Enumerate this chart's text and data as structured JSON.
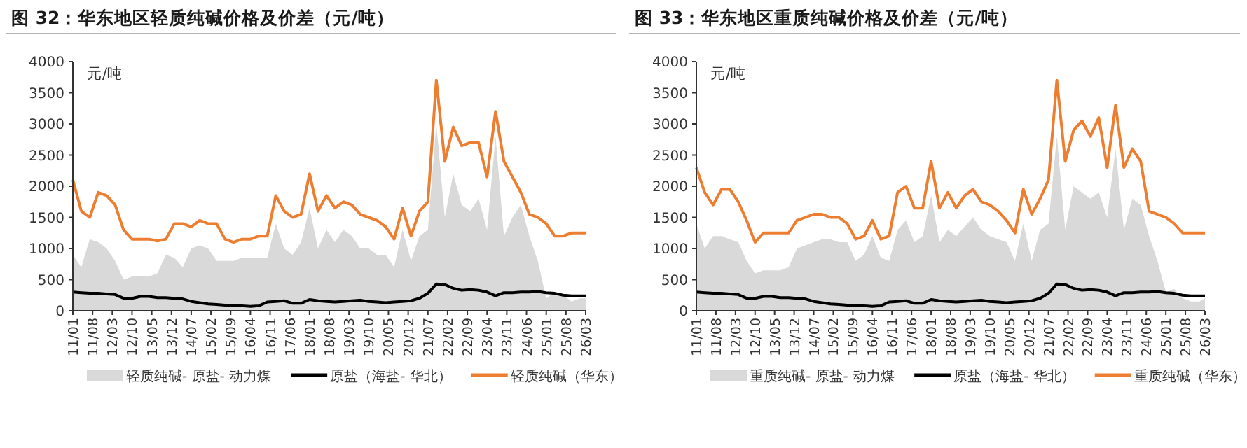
{
  "chart_data": [
    {
      "type": "line",
      "title": "图 32：华东地区轻质纯碱价格及价差（元/吨）",
      "ylabel": "元/吨",
      "legend": "bottom",
      "grid": false,
      "x": [
        "2011-01",
        "2011-04",
        "2011-07",
        "2011-10",
        "2012-01",
        "2012-04",
        "2012-07",
        "2012-10",
        "2013-01",
        "2013-04",
        "2013-07",
        "2013-10",
        "2014-01",
        "2014-04",
        "2014-07",
        "2014-10",
        "2015-01",
        "2015-04",
        "2015-07",
        "2015-10",
        "2016-01",
        "2016-04",
        "2016-07",
        "2016-10",
        "2017-01",
        "2017-04",
        "2017-07",
        "2017-10",
        "2018-01",
        "2018-04",
        "2018-07",
        "2018-10",
        "2019-01",
        "2019-04",
        "2019-07",
        "2019-10",
        "2020-01",
        "2020-04",
        "2020-07",
        "2020-10",
        "2021-01",
        "2021-04",
        "2021-07",
        "2021-10",
        "2022-01",
        "2022-04",
        "2022-07",
        "2022-10",
        "2023-01",
        "2023-04",
        "2023-07",
        "2023-10",
        "2024-01",
        "2024-04",
        "2024-07",
        "2024-10",
        "2025-01",
        "2025-04",
        "2025-07",
        "2025-10",
        "2026-01",
        "2026-03"
      ],
      "xlim": [
        "2011-01",
        "2026-03"
      ],
      "xticks": [
        {
          "value": "2011-01",
          "label": "11/01"
        },
        {
          "value": "2011-08",
          "label": "11/08"
        },
        {
          "value": "2012-03",
          "label": "12/03"
        },
        {
          "value": "2012-10",
          "label": "12/10"
        },
        {
          "value": "2013-05",
          "label": "13/05"
        },
        {
          "value": "2013-12",
          "label": "13/12"
        },
        {
          "value": "2014-07",
          "label": "14/07"
        },
        {
          "value": "2015-02",
          "label": "15/02"
        },
        {
          "value": "2015-09",
          "label": "15/09"
        },
        {
          "value": "2016-04",
          "label": "16/04"
        },
        {
          "value": "2016-11",
          "label": "16/11"
        },
        {
          "value": "2017-06",
          "label": "17/06"
        },
        {
          "value": "2018-01",
          "label": "18/01"
        },
        {
          "value": "2018-08",
          "label": "18/08"
        },
        {
          "value": "2019-03",
          "label": "19/03"
        },
        {
          "value": "2019-10",
          "label": "19/10"
        },
        {
          "value": "2020-05",
          "label": "20/05"
        },
        {
          "value": "2020-12",
          "label": "20/12"
        },
        {
          "value": "2021-07",
          "label": "21/07"
        },
        {
          "value": "2022-02",
          "label": "22/02"
        },
        {
          "value": "2022-09",
          "label": "22/09"
        },
        {
          "value": "2023-04",
          "label": "23/04"
        },
        {
          "value": "2023-11",
          "label": "23/11"
        },
        {
          "value": "2024-06",
          "label": "24/06"
        },
        {
          "value": "2025-01",
          "label": "25/01"
        },
        {
          "value": "2025-08",
          "label": "25/08"
        },
        {
          "value": "2026-03",
          "label": "26/03"
        }
      ],
      "ylim": [
        0,
        4000
      ],
      "yticks": [
        0,
        500,
        1000,
        1500,
        2000,
        2500,
        3000,
        3500,
        4000
      ],
      "series": [
        {
          "name": "轻质纯碱- 原盐- 动力煤",
          "type": "area",
          "color": "#d9d9d9",
          "values": [
            900,
            700,
            1150,
            1100,
            1000,
            800,
            500,
            550,
            550,
            550,
            600,
            900,
            850,
            700,
            1000,
            1050,
            1000,
            800,
            800,
            800,
            850,
            850,
            850,
            850,
            1400,
            1000,
            900,
            1100,
            1650,
            1000,
            1300,
            1100,
            1300,
            1200,
            1000,
            1000,
            900,
            900,
            700,
            1300,
            800,
            1200,
            1300,
            3000,
            1500,
            2200,
            1700,
            1600,
            1800,
            1300,
            2800,
            1200,
            1500,
            1700,
            1200,
            800,
            200,
            300,
            250,
            150,
            200,
            200
          ]
        },
        {
          "name": "原盐（海盐- 华北）",
          "color": "#000000",
          "values": [
            300,
            290,
            280,
            280,
            270,
            260,
            200,
            200,
            230,
            230,
            210,
            210,
            200,
            190,
            150,
            130,
            110,
            100,
            90,
            90,
            80,
            70,
            80,
            140,
            150,
            160,
            120,
            120,
            180,
            160,
            150,
            140,
            150,
            160,
            170,
            150,
            140,
            130,
            140,
            150,
            160,
            200,
            280,
            430,
            420,
            360,
            330,
            340,
            330,
            300,
            240,
            290,
            290,
            300,
            300,
            310,
            290,
            280,
            250,
            240,
            240,
            240
          ]
        },
        {
          "name": "轻质纯碱（华东）",
          "color": "#ed7d31",
          "values": [
            2100,
            1600,
            1500,
            1900,
            1850,
            1700,
            1300,
            1150,
            1150,
            1150,
            1120,
            1150,
            1400,
            1400,
            1350,
            1450,
            1400,
            1400,
            1150,
            1100,
            1150,
            1150,
            1200,
            1200,
            1850,
            1600,
            1500,
            1550,
            2200,
            1600,
            1850,
            1650,
            1750,
            1700,
            1550,
            1500,
            1450,
            1350,
            1150,
            1650,
            1200,
            1600,
            1750,
            3700,
            2400,
            2950,
            2650,
            2700,
            2700,
            2150,
            3200,
            2400,
            2150,
            1900,
            1550,
            1500,
            1400,
            1200,
            1200,
            1250,
            1250,
            1250
          ]
        }
      ]
    },
    {
      "type": "line",
      "title": "图 33：华东地区重质纯碱价格及价差（元/吨）",
      "ylabel": "元/吨",
      "legend": "bottom",
      "grid": false,
      "x": [
        "2011-01",
        "2011-04",
        "2011-07",
        "2011-10",
        "2012-01",
        "2012-04",
        "2012-07",
        "2012-10",
        "2013-01",
        "2013-04",
        "2013-07",
        "2013-10",
        "2014-01",
        "2014-04",
        "2014-07",
        "2014-10",
        "2015-01",
        "2015-04",
        "2015-07",
        "2015-10",
        "2016-01",
        "2016-04",
        "2016-07",
        "2016-10",
        "2017-01",
        "2017-04",
        "2017-07",
        "2017-10",
        "2018-01",
        "2018-04",
        "2018-07",
        "2018-10",
        "2019-01",
        "2019-04",
        "2019-07",
        "2019-10",
        "2020-01",
        "2020-04",
        "2020-07",
        "2020-10",
        "2021-01",
        "2021-04",
        "2021-07",
        "2021-10",
        "2022-01",
        "2022-04",
        "2022-07",
        "2022-10",
        "2023-01",
        "2023-04",
        "2023-07",
        "2023-10",
        "2024-01",
        "2024-04",
        "2024-07",
        "2024-10",
        "2025-01",
        "2025-04",
        "2025-07",
        "2025-10",
        "2026-01",
        "2026-03"
      ],
      "xlim": [
        "2011-01",
        "2026-03"
      ],
      "xticks": [
        {
          "value": "2011-01",
          "label": "11/01"
        },
        {
          "value": "2011-08",
          "label": "11/08"
        },
        {
          "value": "2012-03",
          "label": "12/03"
        },
        {
          "value": "2012-10",
          "label": "12/10"
        },
        {
          "value": "2013-05",
          "label": "13/05"
        },
        {
          "value": "2013-12",
          "label": "13/12"
        },
        {
          "value": "2014-07",
          "label": "14/07"
        },
        {
          "value": "2015-02",
          "label": "15/02"
        },
        {
          "value": "2015-09",
          "label": "15/09"
        },
        {
          "value": "2016-04",
          "label": "16/04"
        },
        {
          "value": "2016-11",
          "label": "16/11"
        },
        {
          "value": "2017-06",
          "label": "17/06"
        },
        {
          "value": "2018-01",
          "label": "18/01"
        },
        {
          "value": "2018-08",
          "label": "18/08"
        },
        {
          "value": "2019-03",
          "label": "19/03"
        },
        {
          "value": "2019-10",
          "label": "19/10"
        },
        {
          "value": "2020-05",
          "label": "20/05"
        },
        {
          "value": "2020-12",
          "label": "20/12"
        },
        {
          "value": "2021-07",
          "label": "21/07"
        },
        {
          "value": "2022-02",
          "label": "22/02"
        },
        {
          "value": "2022-09",
          "label": "22/09"
        },
        {
          "value": "2023-04",
          "label": "23/04"
        },
        {
          "value": "2023-11",
          "label": "23/11"
        },
        {
          "value": "2024-06",
          "label": "24/06"
        },
        {
          "value": "2025-01",
          "label": "25/01"
        },
        {
          "value": "2025-08",
          "label": "25/08"
        },
        {
          "value": "2026-03",
          "label": "26/03"
        }
      ],
      "ylim": [
        0,
        4000
      ],
      "yticks": [
        0,
        500,
        1000,
        1500,
        2000,
        2500,
        3000,
        3500,
        4000
      ],
      "series": [
        {
          "name": "重质纯碱- 原盐- 动力煤",
          "type": "area",
          "color": "#d9d9d9",
          "values": [
            1400,
            1000,
            1200,
            1200,
            1150,
            1100,
            800,
            600,
            650,
            650,
            650,
            700,
            1000,
            1050,
            1100,
            1150,
            1150,
            1100,
            1100,
            800,
            900,
            1200,
            850,
            800,
            1300,
            1450,
            1100,
            1200,
            1850,
            1100,
            1300,
            1200,
            1350,
            1500,
            1300,
            1200,
            1150,
            1100,
            800,
            1400,
            800,
            1300,
            1400,
            2800,
            1300,
            2000,
            1900,
            1800,
            1900,
            1500,
            2600,
            1300,
            1800,
            1700,
            1200,
            800,
            300,
            350,
            200,
            150,
            150,
            200
          ]
        },
        {
          "name": "原盐（海盐- 华北）",
          "color": "#000000",
          "values": [
            300,
            290,
            280,
            280,
            270,
            260,
            200,
            200,
            230,
            230,
            210,
            210,
            200,
            190,
            150,
            130,
            110,
            100,
            90,
            90,
            80,
            70,
            80,
            140,
            150,
            160,
            120,
            120,
            180,
            160,
            150,
            140,
            150,
            160,
            170,
            150,
            140,
            130,
            140,
            150,
            160,
            200,
            280,
            430,
            420,
            360,
            330,
            340,
            330,
            300,
            240,
            290,
            290,
            300,
            300,
            310,
            290,
            280,
            250,
            240,
            240,
            240
          ]
        },
        {
          "name": "重质纯碱（华东）",
          "color": "#ed7d31",
          "values": [
            2300,
            1900,
            1700,
            1950,
            1950,
            1750,
            1450,
            1100,
            1250,
            1250,
            1250,
            1250,
            1450,
            1500,
            1550,
            1550,
            1500,
            1500,
            1400,
            1150,
            1200,
            1450,
            1150,
            1200,
            1900,
            2000,
            1650,
            1650,
            2400,
            1650,
            1900,
            1650,
            1850,
            1950,
            1750,
            1700,
            1600,
            1450,
            1250,
            1950,
            1550,
            1800,
            2100,
            3700,
            2400,
            2900,
            3050,
            2800,
            3100,
            2300,
            3300,
            2300,
            2600,
            2400,
            1600,
            1550,
            1500,
            1400,
            1250,
            1250,
            1250,
            1250
          ]
        }
      ]
    }
  ]
}
